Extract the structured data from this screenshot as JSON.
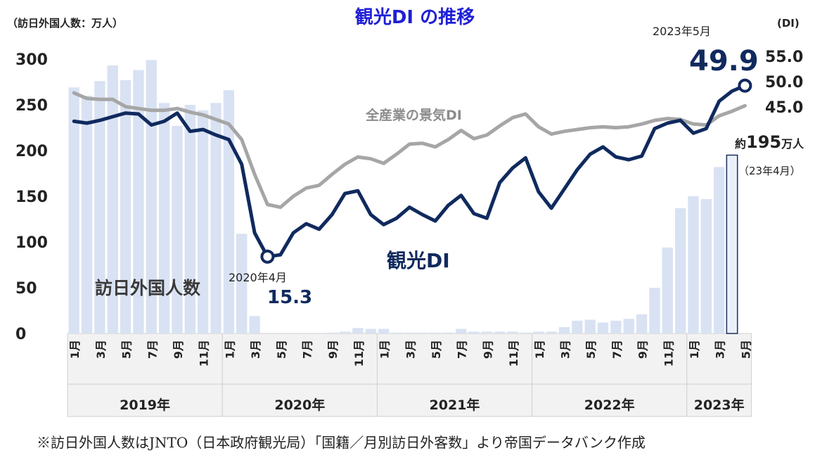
{
  "chart_data": {
    "type": "bar+line",
    "title": "観光DI の推移",
    "left_axis_label": "（訪日外国人数：万人）",
    "right_axis_label": "(DI)",
    "left_ticks": [
      "0",
      "50",
      "100",
      "150",
      "200",
      "250",
      "300"
    ],
    "right_ticks": [
      "45.0",
      "50.0",
      "55.0"
    ],
    "month_labels": [
      "1月",
      "",
      "3月",
      "",
      "5月",
      "",
      "7月",
      "",
      "9月",
      "",
      "11月",
      "",
      "1月",
      "",
      "3月",
      "",
      "5月",
      "",
      "7月",
      "",
      "9月",
      "",
      "11月",
      "",
      "1月",
      "",
      "3月",
      "",
      "5月",
      "",
      "7月",
      "",
      "9月",
      "",
      "11月",
      "",
      "1月",
      "",
      "3月",
      "",
      "5月",
      "",
      "7月",
      "",
      "9月",
      "",
      "11月",
      "",
      "1月",
      "",
      "3月",
      "",
      "5月"
    ],
    "years": [
      "2019年",
      "2020年",
      "2021年",
      "2022年",
      "2023年"
    ],
    "ylim_left": [
      0,
      300
    ],
    "visitors": {
      "name": "訪日外国人数",
      "values": [
        269,
        260,
        276,
        293,
        277,
        288,
        299,
        252,
        227,
        250,
        244,
        252,
        266,
        109,
        19,
        0,
        0,
        0,
        0,
        0,
        1,
        2,
        6,
        5,
        5,
        1,
        1,
        1,
        1,
        1,
        5,
        2,
        2,
        2,
        2,
        1,
        2,
        2,
        7,
        14,
        15,
        12,
        14,
        16,
        21,
        50,
        94,
        137,
        150,
        147,
        182,
        195,
        null
      ]
    },
    "tourism_di": {
      "name": "観光DI",
      "values": [
        232,
        230,
        233,
        237,
        241,
        240,
        228,
        232,
        241,
        221,
        223,
        217,
        212,
        185,
        110,
        84,
        86,
        110,
        120,
        114,
        130,
        153,
        156,
        130,
        119,
        126,
        138,
        130,
        123,
        140,
        151,
        131,
        126,
        165,
        181,
        192,
        155,
        137,
        158,
        179,
        196,
        204,
        193,
        190,
        194,
        224,
        230,
        233,
        219,
        224,
        254,
        265,
        271
      ]
    },
    "all_industries_di": {
      "name": "全産業の景気DI",
      "values": [
        263,
        257,
        256,
        256,
        248,
        246,
        244,
        244,
        246,
        242,
        239,
        234,
        229,
        212,
        174,
        141,
        138,
        150,
        159,
        162,
        174,
        185,
        193,
        191,
        186,
        196,
        207,
        208,
        204,
        212,
        222,
        213,
        217,
        227,
        236,
        240,
        226,
        218,
        221,
        223,
        225,
        226,
        225,
        226,
        229,
        233,
        235,
        234,
        229,
        228,
        238,
        243,
        249
      ]
    },
    "annotations": {
      "low_label": "2020年4月",
      "low_value": "15.3",
      "high_label": "2023年5月",
      "high_value": "49.9",
      "visitors_peak_prefix": "約",
      "visitors_peak_value": "195",
      "visitors_peak_unit": "万人",
      "visitors_peak_date": "（23年4月）"
    },
    "colors": {
      "bar": "#d9e2f3",
      "bar_highlight_fill": "#eaf0fa",
      "bar_highlight_stroke": "#1f2d5a",
      "tourism_di": "#102a5e",
      "all_industries_di": "#a6a6a6",
      "title": "#1f1fd6",
      "axis_text": "#222222",
      "grid_cell_fill": "#f2f2f2",
      "grid_cell_border": "#d0d0d0",
      "gray_label": "#8c8c8c",
      "series_label": "#3a3a3a"
    }
  },
  "footnote": "※訪日外国人数はJNTO（日本政府観光局）「国籍／月別訪日外客数」より帝国データバンク作成"
}
